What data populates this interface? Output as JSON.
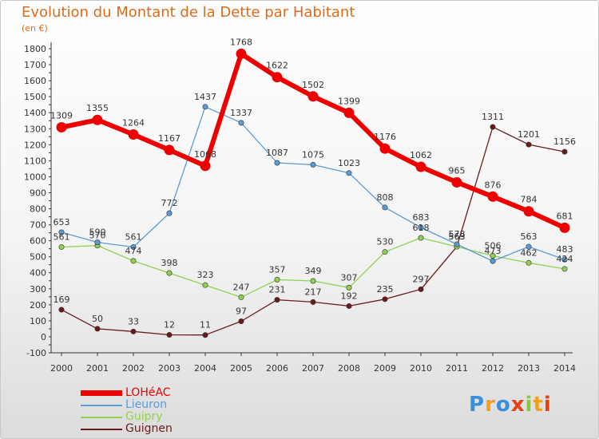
{
  "title": "Evolution du Montant de la Dette par Habitant",
  "unit": "(en €)",
  "brand": {
    "text": "Proxiti",
    "colors": [
      "#3a8fd8",
      "#f0a020",
      "#3a8fd8",
      "#e84010",
      "#8cc63f",
      "#f0a020",
      "#e84010"
    ]
  },
  "chart_data": {
    "type": "line",
    "x": [
      2000,
      2001,
      2002,
      2003,
      2004,
      2005,
      2006,
      2007,
      2008,
      2009,
      2010,
      2011,
      2012,
      2013,
      2014
    ],
    "ylim": [
      -100,
      1800
    ],
    "yticks": [
      -100,
      0,
      100,
      200,
      300,
      400,
      500,
      600,
      700,
      800,
      900,
      1000,
      1100,
      1200,
      1300,
      1400,
      1500,
      1600,
      1700,
      1800
    ],
    "grid": false,
    "legend_position": "bottom-left",
    "series": [
      {
        "name": "LOHéAC",
        "color": "#ee0000",
        "values": [
          1309,
          1355,
          1264,
          1167,
          1068,
          1768,
          1622,
          1502,
          1399,
          1176,
          1062,
          965,
          876,
          784,
          681
        ]
      },
      {
        "name": "Lieuron",
        "color": "#5b9bd5",
        "values": [
          653,
          590,
          561,
          772,
          1437,
          1337,
          1087,
          1075,
          1023,
          808,
          683,
          578,
          473,
          563,
          483
        ]
      },
      {
        "name": "Guipry",
        "color": "#8fd14f",
        "values": [
          561,
          570,
          474,
          398,
          323,
          247,
          357,
          349,
          307,
          530,
          618,
          563,
          506,
          462,
          424
        ]
      },
      {
        "name": "Guignen",
        "color": "#6b1a1a",
        "values": [
          169,
          50,
          33,
          12,
          11,
          97,
          231,
          217,
          192,
          235,
          297,
          563,
          1311,
          1201,
          1156
        ]
      }
    ]
  }
}
